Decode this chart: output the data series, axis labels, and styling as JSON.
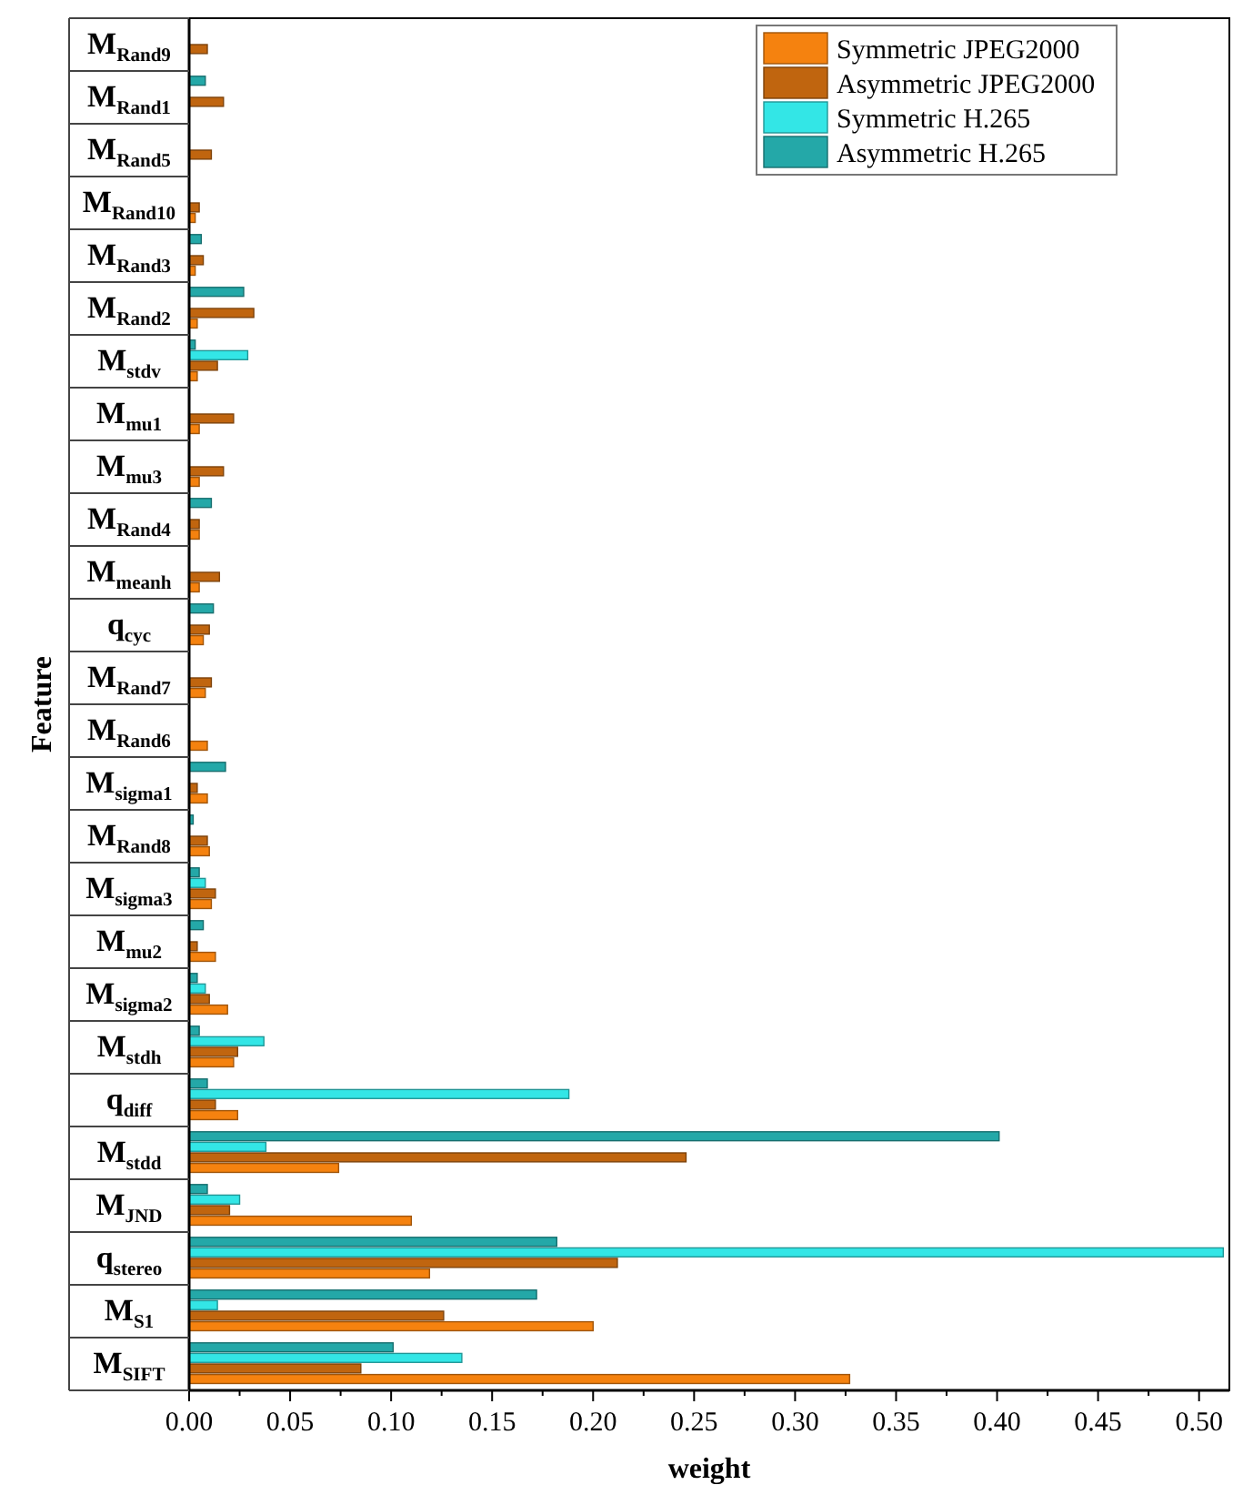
{
  "chart_data": {
    "type": "bar",
    "orientation": "horizontal",
    "xlabel": "weight",
    "ylabel": "Feature",
    "legend": "top right",
    "grid": false,
    "categories": [
      "M$_{Rand9}$",
      "M$_{Rand1}$",
      "M$_{Rand5}$",
      "M$_{Rand10}$",
      "M$_{Rand3}$",
      "M$_{Rand2}$",
      "M$_{stdv}$",
      "M$_{mu1}$",
      "M$_{mu3}$",
      "M$_{Rand4}$",
      "M$_{meanh}$",
      "q$_{cyc}$",
      "M$_{Rand7}$",
      "M$_{Rand6}$",
      "M$_{sigma1}$",
      "M$_{Rand8}$",
      "M$_{sigma3}$",
      "M$_{mu2}$",
      "M$_{sigma2}$",
      "M$_{stdh}$",
      "q$_{diff}$",
      "M$_{stdd}$",
      "M$_{JND}$",
      "q$_{stereo}$",
      "M$_{S1}$",
      "M$_{SIFT}$"
    ],
    "series": [
      {
        "name": "Symmetric JPEG2000",
        "color": "#f5820f",
        "values": [
          0,
          0,
          0,
          0.003,
          0.003,
          0.004,
          0.004,
          0.005,
          0.005,
          0.005,
          0.005,
          0.007,
          0.008,
          0.009,
          0.009,
          0.01,
          0.011,
          0.013,
          0.019,
          0.022,
          0.024,
          0.074,
          0.11,
          0.119,
          0.2,
          0.327
        ]
      },
      {
        "name": "Asymmetric JPEG2000",
        "color": "#c0650f",
        "values": [
          0.009,
          0.017,
          0.011,
          0.005,
          0.007,
          0.032,
          0.014,
          0.022,
          0.017,
          0.005,
          0.015,
          0.01,
          0.011,
          0,
          0.004,
          0.009,
          0.013,
          0.004,
          0.01,
          0.024,
          0.013,
          0.246,
          0.02,
          0.212,
          0.126,
          0.085
        ]
      },
      {
        "name": "Symmetric H.265",
        "color": "#33e6e6",
        "values": [
          0,
          0,
          0,
          0,
          0,
          0,
          0.029,
          0,
          0,
          0,
          0,
          0,
          0,
          0,
          0,
          0,
          0.008,
          0,
          0.008,
          0.037,
          0.188,
          0.038,
          0.025,
          0.512,
          0.014,
          0.135
        ]
      },
      {
        "name": "Asymmetric H.265",
        "color": "#24a8a8",
        "values": [
          0,
          0.008,
          0,
          0,
          0.006,
          0.027,
          0.003,
          0,
          0,
          0.011,
          0,
          0.012,
          0,
          0,
          0.018,
          0.002,
          0.005,
          0.007,
          0.004,
          0.005,
          0.009,
          0.401,
          0.009,
          0.182,
          0.172,
          0.101
        ]
      }
    ],
    "xlim": [
      0,
      0.515
    ],
    "xticks": [
      {
        "value": 0,
        "label": "0.00"
      },
      {
        "value": 0.025,
        "label": null
      },
      {
        "value": 0.05,
        "label": "0.05"
      },
      {
        "value": 0.075,
        "label": null
      },
      {
        "value": 0.1,
        "label": "0.10"
      },
      {
        "value": 0.125,
        "label": null
      },
      {
        "value": 0.15,
        "label": "0.15"
      },
      {
        "value": 0.175,
        "label": null
      },
      {
        "value": 0.2,
        "label": "0.20"
      },
      {
        "value": 0.225,
        "label": null
      },
      {
        "value": 0.25,
        "label": "0.25"
      },
      {
        "value": 0.275,
        "label": null
      },
      {
        "value": 0.3,
        "label": "0.30"
      },
      {
        "value": 0.325,
        "label": null
      },
      {
        "value": 0.35,
        "label": "0.35"
      },
      {
        "value": 0.375,
        "label": null
      },
      {
        "value": 0.4,
        "label": "0.40"
      },
      {
        "value": 0.425,
        "label": null
      },
      {
        "value": 0.45,
        "label": "0.45"
      },
      {
        "value": 0.475,
        "label": null
      },
      {
        "value": 0.5,
        "label": "0.50"
      }
    ]
  }
}
